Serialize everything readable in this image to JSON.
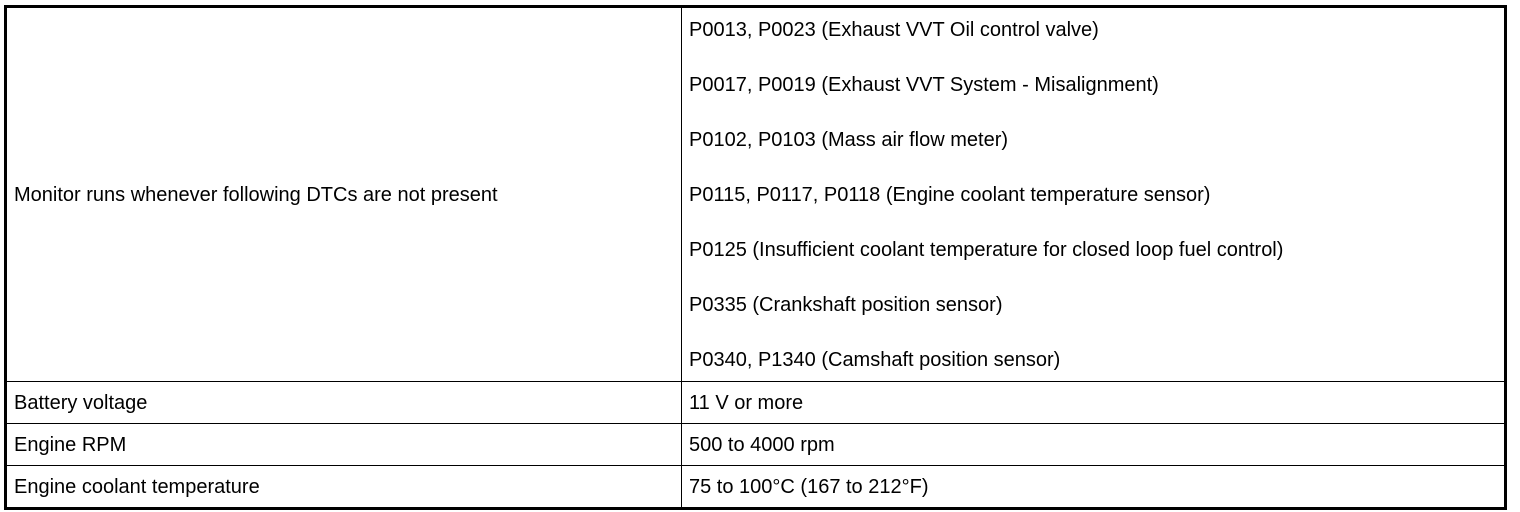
{
  "table": {
    "rows": [
      [
        "Monitor runs whenever following DTCs are not present",
        [
          "P0013, P0023 (Exhaust VVT Oil control valve)",
          "P0017, P0019 (Exhaust VVT System - Misalignment)",
          "P0102, P0103 (Mass air flow meter)",
          "P0115, P0117, P0118 (Engine coolant temperature sensor)",
          "P0125 (Insufficient coolant temperature for closed loop fuel control)",
          "P0335 (Crankshaft position sensor)",
          "P0340, P1340 (Camshaft position sensor)"
        ]
      ],
      [
        "Battery voltage",
        "11 V or more"
      ],
      [
        "Engine RPM",
        "500 to 4000 rpm"
      ],
      [
        "Engine coolant temperature",
        "75 to 100°C (167 to 212°F)"
      ]
    ]
  }
}
